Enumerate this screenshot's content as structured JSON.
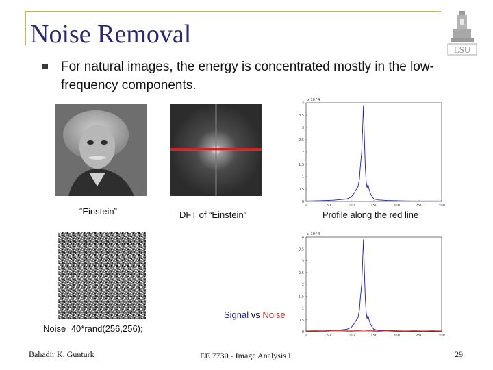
{
  "slide": {
    "title": "Noise Removal",
    "bullet": "For natural images, the energy is concentrated mostly in the low-frequency components.",
    "logo_text": "LSU"
  },
  "figures": {
    "einstein_caption": "“Einstein”",
    "dft_caption": "DFT of “Einstein”",
    "profile_caption": "Profile along the red line",
    "legend_signal": "Signal",
    "legend_vs": "vs",
    "legend_noise": "Noise",
    "noise_caption": "Noise=40*rand(256,256);"
  },
  "footer": {
    "author": "Bahadir K. Gunturk",
    "course": "EE 7730 - Image Analysis I",
    "page": "29"
  },
  "colors": {
    "title": "#2a2a6a",
    "frame": "#c8b560",
    "signal": "#1a1aa8",
    "noise": "#c0302a",
    "red_line": "#d42020"
  },
  "chart_data": [
    {
      "type": "line",
      "name": "profile-top",
      "x_ticks": [
        "0",
        "50",
        "100",
        "150",
        "200",
        "250",
        "300"
      ],
      "y_ticks": [
        "0",
        "0.5",
        "1",
        "1.5",
        "2",
        "2.5",
        "3",
        "3.5",
        "4"
      ],
      "y_exponent": "x 10^4",
      "xlim": [
        0,
        300
      ],
      "ylim": [
        0,
        4
      ],
      "series": [
        {
          "x": [
            0,
            30,
            60,
            80,
            90,
            100,
            105,
            110,
            115,
            118,
            120,
            123,
            125,
            127,
            129,
            131,
            133,
            135,
            137,
            140,
            143,
            146,
            150,
            160,
            180,
            200,
            230,
            260,
            300
          ],
          "values": [
            0.02,
            0.03,
            0.05,
            0.08,
            0.1,
            0.18,
            0.3,
            0.45,
            0.6,
            0.9,
            1.4,
            2.0,
            2.9,
            3.9,
            2.6,
            1.4,
            0.8,
            0.55,
            0.7,
            0.45,
            0.3,
            0.2,
            0.1,
            0.06,
            0.04,
            0.03,
            0.02,
            0.02,
            0.02
          ]
        }
      ]
    },
    {
      "type": "line",
      "name": "profile-bottom",
      "x_ticks": [
        "0",
        "50",
        "100",
        "150",
        "200",
        "250",
        "300"
      ],
      "y_ticks": [
        "0",
        "0.5",
        "1",
        "1.5",
        "2",
        "2.5",
        "3",
        "3.5",
        "4"
      ],
      "y_exponent": "x 10^4",
      "xlim": [
        0,
        300
      ],
      "ylim": [
        0,
        4
      ],
      "series": [
        {
          "x": [
            0,
            30,
            60,
            80,
            90,
            100,
            105,
            110,
            115,
            118,
            120,
            123,
            125,
            127,
            129,
            131,
            133,
            135,
            137,
            140,
            143,
            146,
            150,
            160,
            180,
            200,
            230,
            260,
            300
          ],
          "values": [
            0.02,
            0.03,
            0.05,
            0.08,
            0.1,
            0.18,
            0.3,
            0.45,
            0.6,
            0.9,
            1.4,
            2.0,
            2.9,
            3.9,
            2.6,
            1.4,
            0.8,
            0.55,
            0.7,
            0.45,
            0.3,
            0.2,
            0.1,
            0.06,
            0.04,
            0.03,
            0.02,
            0.02,
            0.02
          ]
        },
        {
          "x": [
            0,
            20,
            40,
            60,
            80,
            100,
            120,
            128,
            140,
            160,
            180,
            200,
            220,
            240,
            260,
            280,
            300
          ],
          "values": [
            0.03,
            0.04,
            0.03,
            0.05,
            0.04,
            0.03,
            0.05,
            0.06,
            0.04,
            0.03,
            0.05,
            0.04,
            0.03,
            0.04,
            0.03,
            0.04,
            0.03
          ]
        }
      ]
    }
  ]
}
